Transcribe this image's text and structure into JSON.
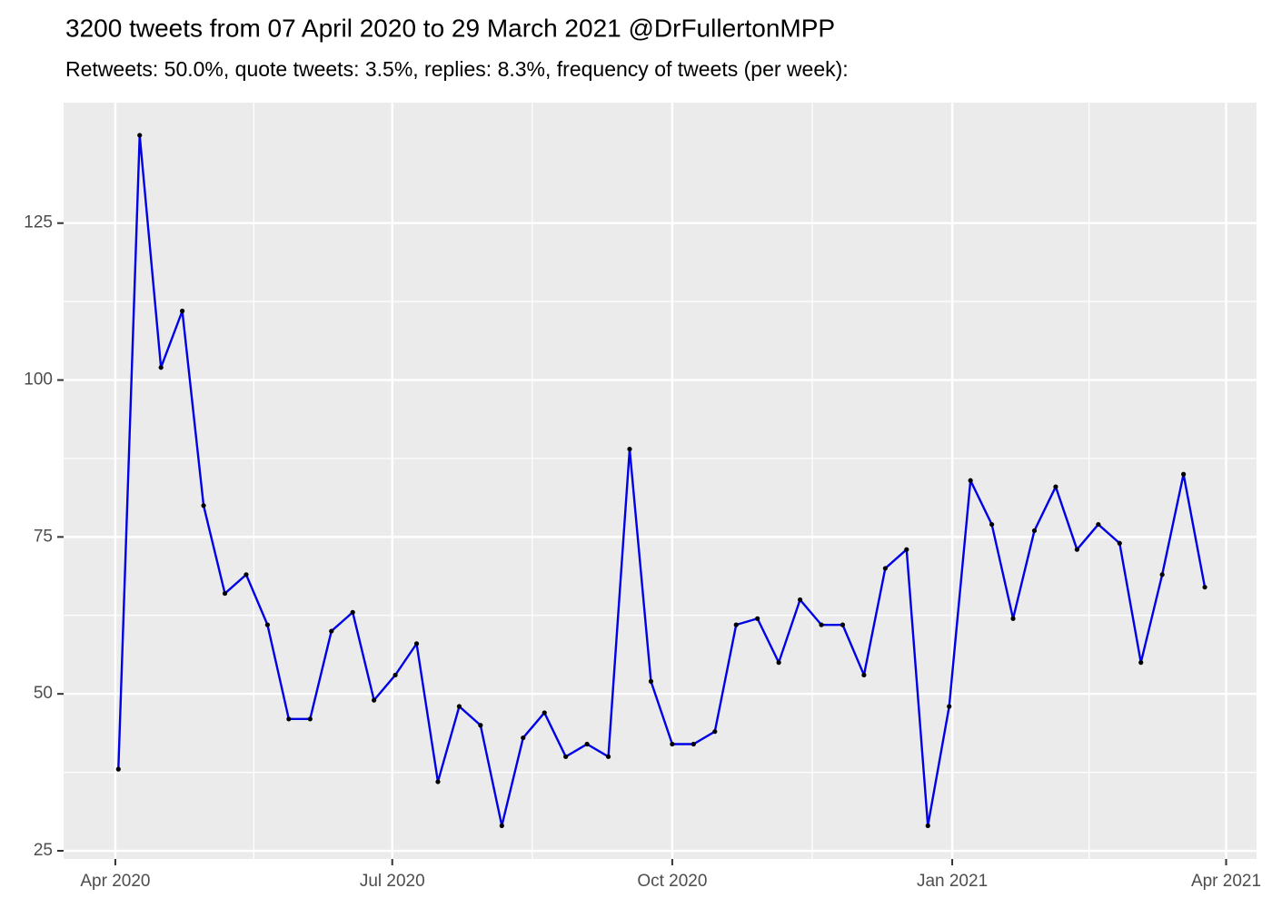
{
  "chart_data": {
    "type": "line",
    "title": "3200 tweets from 07 April 2020 to 29 March 2021 @DrFullertonMPP",
    "subtitle": "Retweets: 50.0%, quote tweets: 3.5%, replies: 8.3%, frequency of tweets (per week):",
    "x": [
      "2020-04-02",
      "2020-04-09",
      "2020-04-16",
      "2020-04-23",
      "2020-04-30",
      "2020-05-07",
      "2020-05-14",
      "2020-05-21",
      "2020-05-28",
      "2020-06-04",
      "2020-06-11",
      "2020-06-18",
      "2020-06-25",
      "2020-07-02",
      "2020-07-09",
      "2020-07-16",
      "2020-07-23",
      "2020-07-30",
      "2020-08-06",
      "2020-08-13",
      "2020-08-20",
      "2020-08-27",
      "2020-09-03",
      "2020-09-10",
      "2020-09-17",
      "2020-09-24",
      "2020-10-01",
      "2020-10-08",
      "2020-10-15",
      "2020-10-22",
      "2020-10-29",
      "2020-11-05",
      "2020-11-12",
      "2020-11-19",
      "2020-11-26",
      "2020-12-03",
      "2020-12-10",
      "2020-12-17",
      "2020-12-24",
      "2020-12-31",
      "2021-01-07",
      "2021-01-14",
      "2021-01-21",
      "2021-01-28",
      "2021-02-04",
      "2021-02-11",
      "2021-02-18",
      "2021-02-25",
      "2021-03-04",
      "2021-03-11",
      "2021-03-18",
      "2021-03-25"
    ],
    "series": [
      {
        "color": "#0000e6",
        "marker_color": "#000000",
        "values": [
          38,
          139,
          102,
          111,
          80,
          66,
          69,
          61,
          46,
          46,
          60,
          63,
          49,
          53,
          58,
          36,
          48,
          45,
          29,
          43,
          47,
          40,
          42,
          40,
          89,
          52,
          42,
          42,
          44,
          61,
          62,
          55,
          65,
          61,
          61,
          53,
          70,
          73,
          29,
          48,
          84,
          77,
          62,
          76,
          83,
          73,
          77,
          74,
          55,
          69,
          85,
          67
        ]
      }
    ],
    "xlim": [
      "2020-03-15",
      "2021-04-11"
    ],
    "xticks": [
      {
        "value": "2020-04-01",
        "label": "Apr 2020"
      },
      {
        "value": "2020-07-01",
        "label": "Jul 2020"
      },
      {
        "value": "2020-10-01",
        "label": "Oct 2020"
      },
      {
        "value": "2021-01-01",
        "label": "Jan 2021"
      },
      {
        "value": "2021-04-01",
        "label": "Apr 2021"
      }
    ],
    "ylim": [
      23.7,
      144.2
    ],
    "yticks": [
      25,
      50,
      75,
      100,
      125
    ],
    "grid": true
  }
}
